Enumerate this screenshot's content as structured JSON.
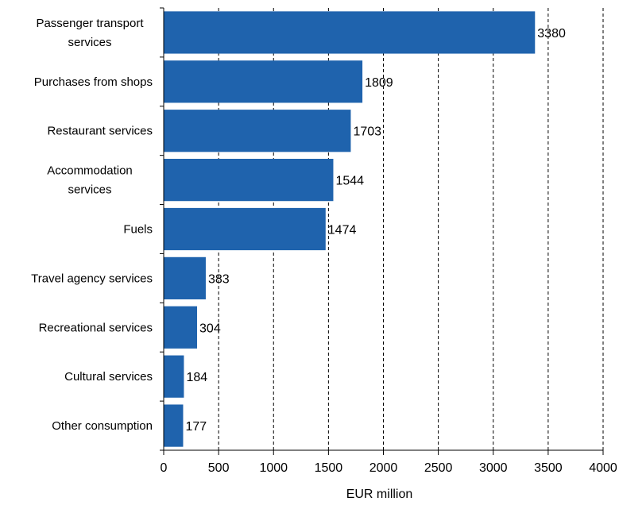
{
  "chart_data": {
    "type": "bar",
    "orientation": "horizontal",
    "categories": [
      [
        "Passenger transport",
        "services"
      ],
      [
        "Purchases from shops"
      ],
      [
        "Restaurant services"
      ],
      [
        "Accommodation",
        "services"
      ],
      [
        "Fuels"
      ],
      [
        "Travel agency services"
      ],
      [
        "Recreational services"
      ],
      [
        "Cultural services"
      ],
      [
        "Other consumption"
      ]
    ],
    "values": [
      3380,
      1809,
      1703,
      1544,
      1474,
      383,
      304,
      184,
      177
    ],
    "data_labels": [
      "3380",
      "1809",
      "1703",
      "1544",
      "1474",
      "383",
      "304",
      "184",
      "177"
    ],
    "xlabel": "EUR million",
    "xlim": [
      0,
      4000
    ],
    "xticks": [
      0,
      500,
      1000,
      1500,
      2000,
      2500,
      3000,
      3500,
      4000
    ],
    "xtick_labels": [
      "0",
      "500",
      "1000",
      "1500",
      "2000",
      "2500",
      "3000",
      "3500",
      "4000"
    ],
    "grid": "vertical dashed",
    "bar_color": "#1f63ad"
  }
}
